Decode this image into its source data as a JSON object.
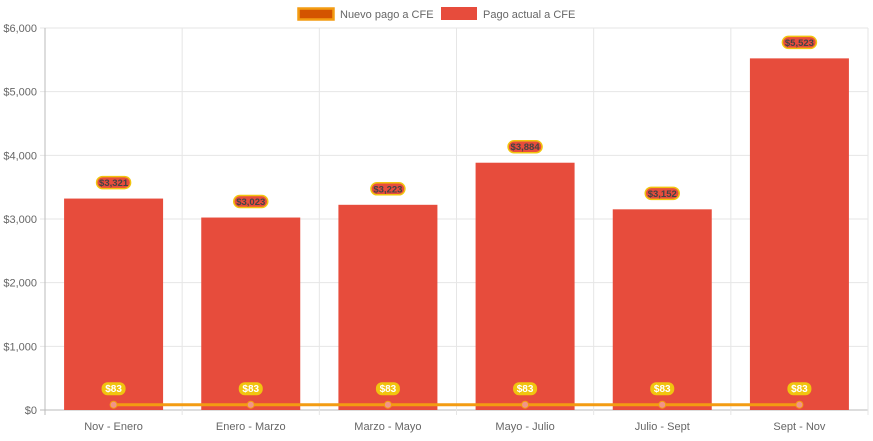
{
  "chart_data": {
    "type": "bar",
    "title": "",
    "xlabel": "",
    "ylabel": "",
    "categories": [
      "Nov - Enero",
      "Enero - Marzo",
      "Marzo - Mayo",
      "Mayo - Julio",
      "Julio - Sept",
      "Sept - Nov"
    ],
    "ylim": [
      0,
      6000
    ],
    "yticks": [
      0,
      1000,
      2000,
      3000,
      4000,
      5000,
      6000
    ],
    "ytick_labels": [
      "$0",
      "$1,000",
      "$2,000",
      "$3,000",
      "$4,000",
      "$5,000",
      "$6,000"
    ],
    "grid": true,
    "legend_position": "top",
    "series": [
      {
        "name": "Nuevo pago a CFE",
        "type": "line",
        "values": [
          83,
          83,
          83,
          83,
          83,
          83
        ],
        "labels": [
          "$83",
          "$83",
          "$83",
          "$83",
          "$83",
          "$83"
        ],
        "color": "#f39c12",
        "fill": "#d35400"
      },
      {
        "name": "Pago actual a CFE",
        "type": "bar",
        "values": [
          3321,
          3023,
          3223,
          3884,
          3152,
          5523
        ],
        "labels": [
          "$3,321",
          "$3,023",
          "$3,223",
          "$3,884",
          "$3,152",
          "$5,523"
        ],
        "color": "#e74c3c"
      }
    ]
  }
}
